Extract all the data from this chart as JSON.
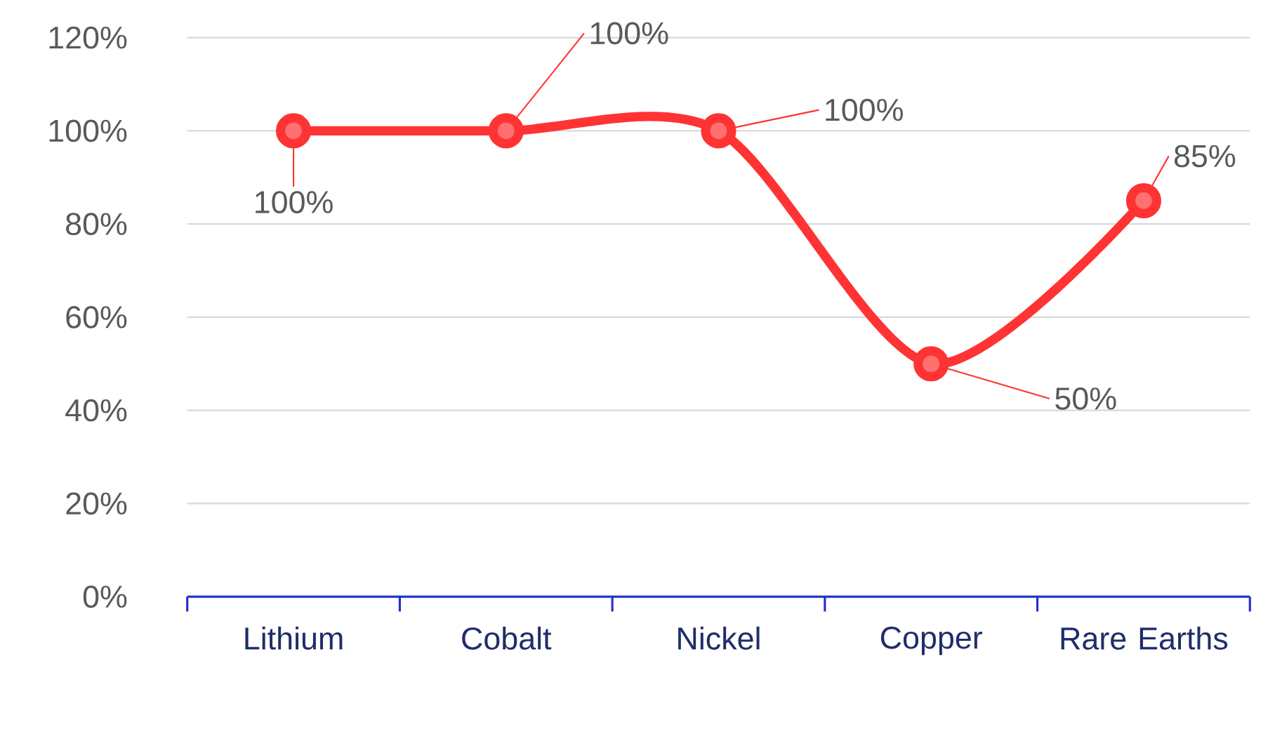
{
  "chart_data": {
    "type": "line",
    "categories": [
      "Lithium",
      "Cobalt",
      "Nickel",
      "Copper",
      "Rare Earths"
    ],
    "series": [
      {
        "color": "#ff3333",
        "values": [
          100,
          100,
          100,
          50,
          85
        ],
        "value_labels": [
          "100%",
          "100%",
          "100%",
          "50%",
          "85%"
        ]
      }
    ],
    "ylim": [
      0,
      120
    ],
    "yticks": [
      {
        "value": 0,
        "label": "0%"
      },
      {
        "value": 20,
        "label": "20%"
      },
      {
        "value": 40,
        "label": "40%"
      },
      {
        "value": 60,
        "label": "60%"
      },
      {
        "value": 80,
        "label": "80%"
      },
      {
        "value": 100,
        "label": "100%"
      },
      {
        "value": 120,
        "label": "120%"
      }
    ],
    "grid": "y",
    "marker": "circle"
  }
}
